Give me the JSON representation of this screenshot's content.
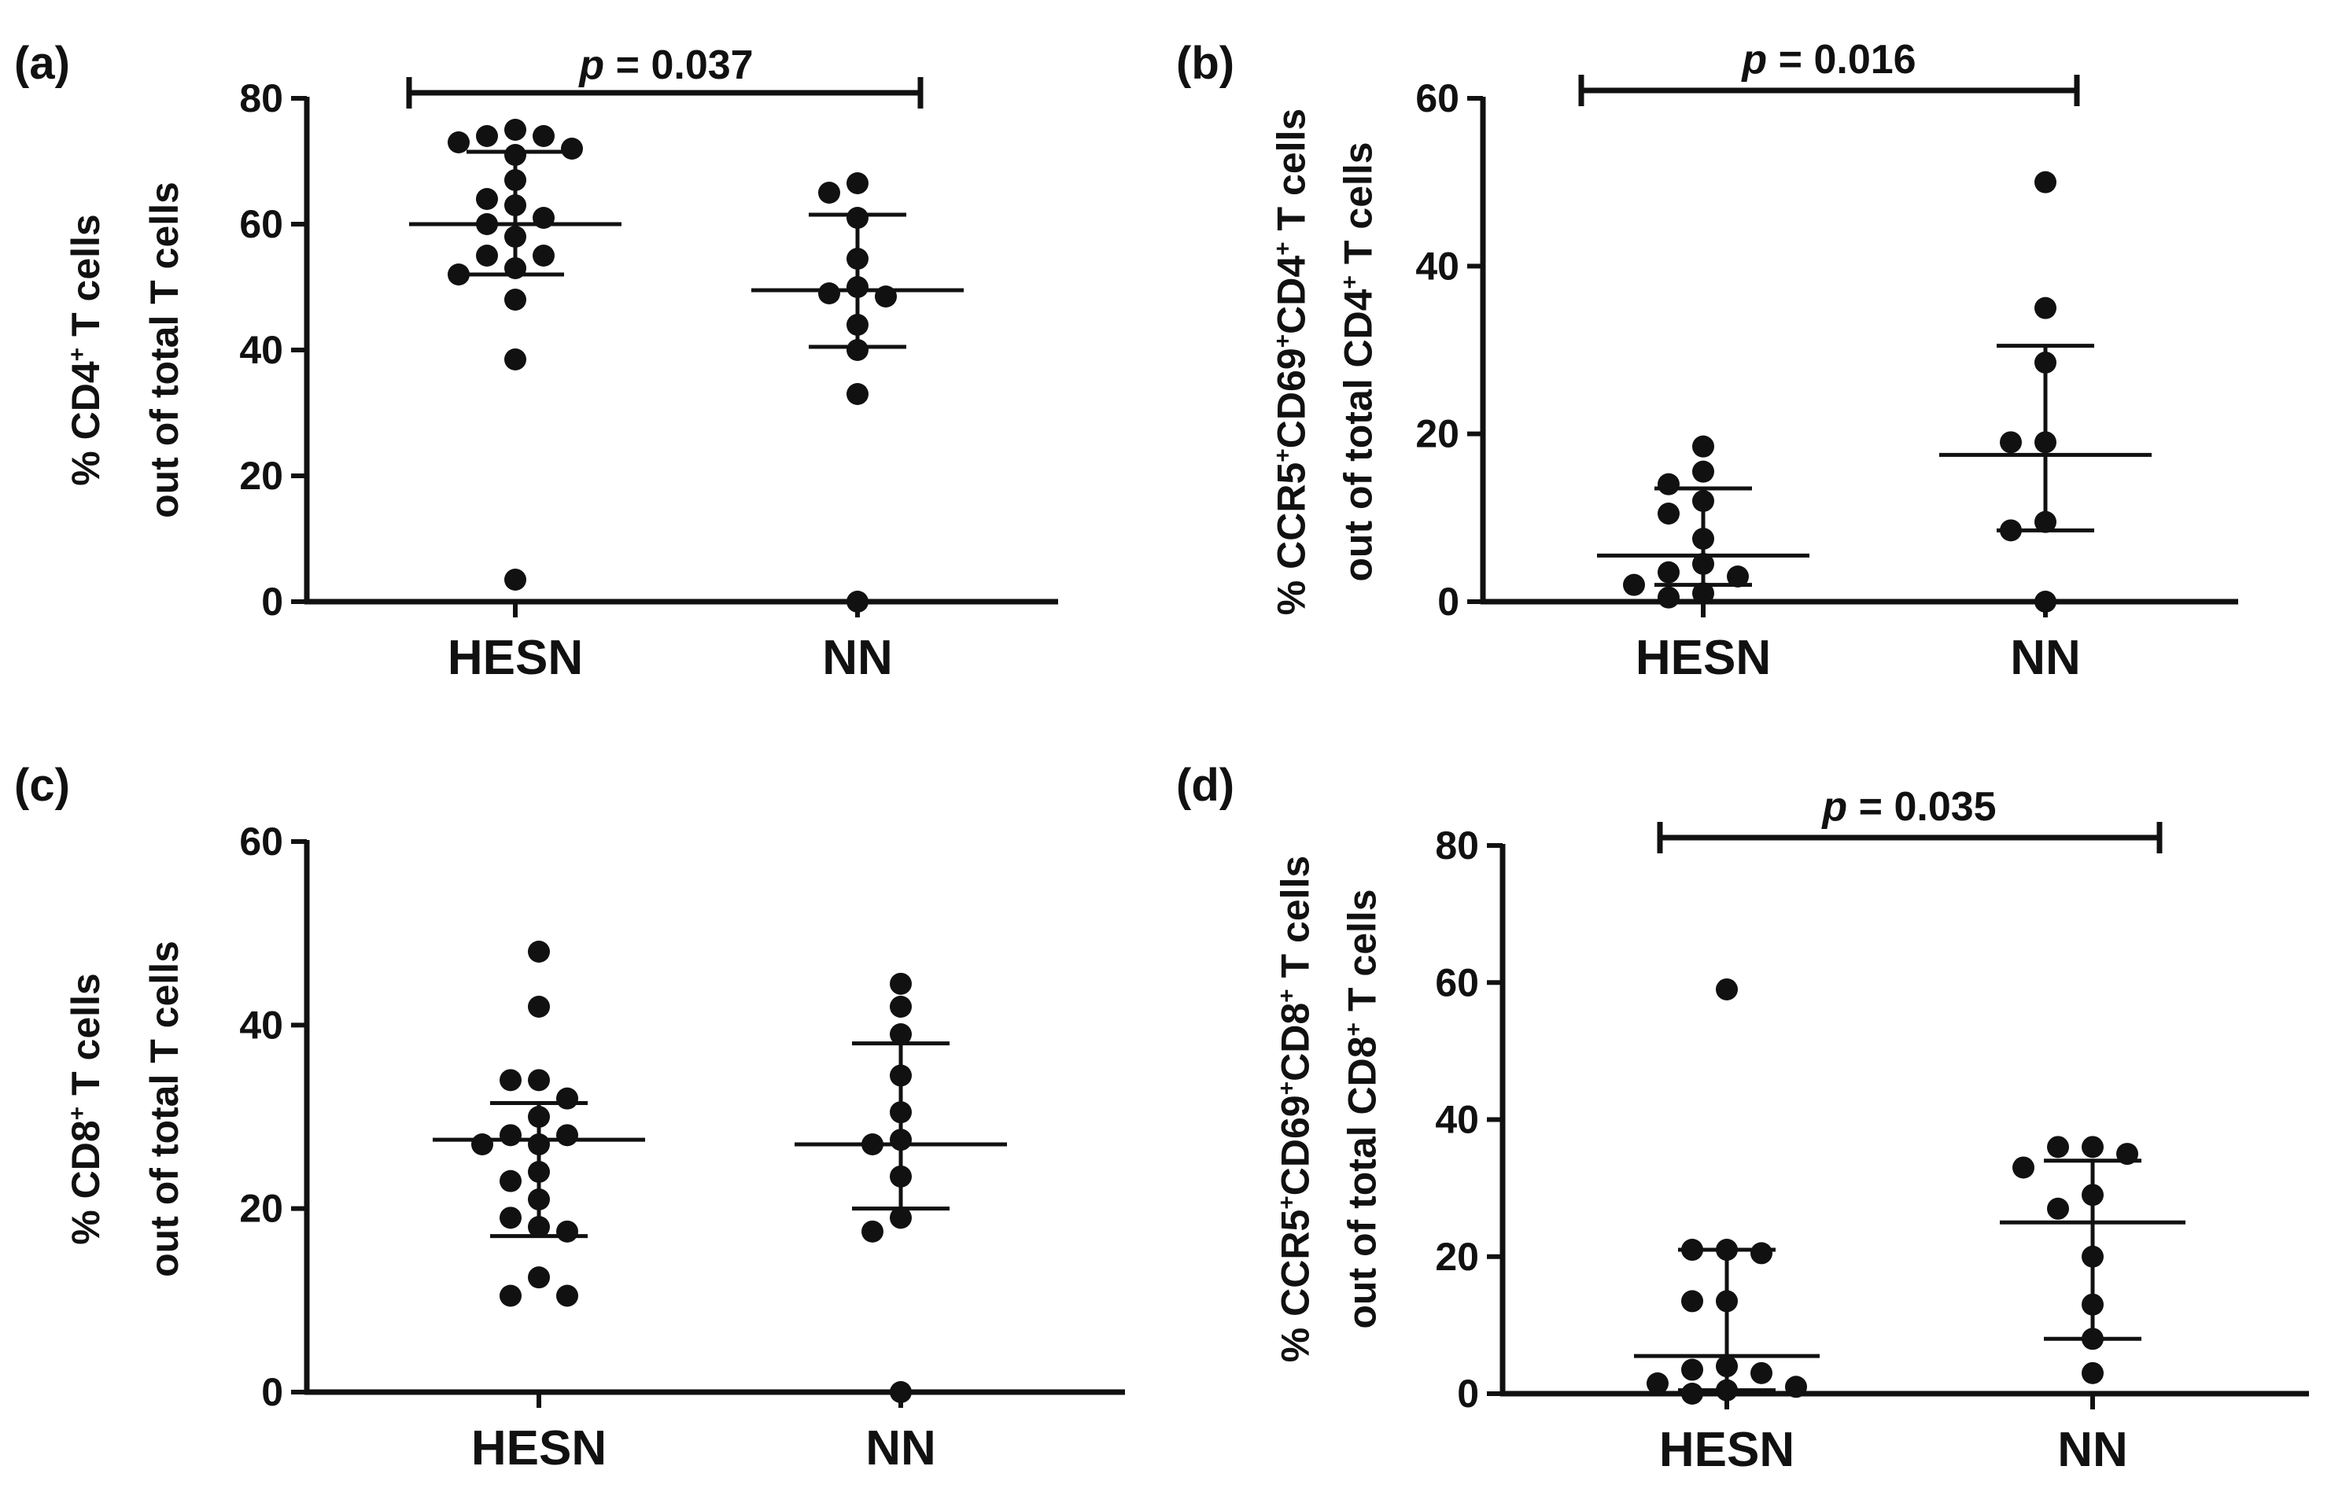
{
  "chart_data": [
    {
      "type": "scatter",
      "panel_label": "(a)",
      "ylabel_parts": [
        {
          "line": 1,
          "text": "% CD4",
          "sup": false
        },
        {
          "line": 1,
          "text": "+",
          "sup": true
        },
        {
          "line": 1,
          "text": " T cells",
          "sup": false
        },
        {
          "line": 2,
          "text": "out of total T cells",
          "sup": false
        }
      ],
      "ylim": [
        0,
        80
      ],
      "yticks": [
        0,
        20,
        40,
        60,
        80
      ],
      "categories": [
        "HESN",
        "NN"
      ],
      "significance": {
        "p_label": "p",
        "p_value": " = 0.037"
      },
      "series": [
        {
          "name": "HESN",
          "mean": 60,
          "error_low": 52,
          "error_high": 71.5,
          "values": [
            75,
            74,
            74,
            73,
            72,
            71,
            67,
            64,
            63,
            61,
            60,
            58,
            55,
            55,
            53,
            52,
            48,
            38.5,
            3.5
          ]
        },
        {
          "name": "NN",
          "mean": 49.5,
          "error_low": 40.5,
          "error_high": 61.5,
          "values": [
            66.5,
            65,
            61,
            54.5,
            50,
            49,
            48.5,
            44,
            40,
            33,
            0
          ]
        }
      ]
    },
    {
      "type": "scatter",
      "panel_label": "(b)",
      "ylabel_parts": [
        {
          "line": 1,
          "text": "% CCR5",
          "sup": false
        },
        {
          "line": 1,
          "text": "+",
          "sup": true
        },
        {
          "line": 1,
          "text": "CD69",
          "sup": false
        },
        {
          "line": 1,
          "text": "+",
          "sup": true
        },
        {
          "line": 1,
          "text": "CD4",
          "sup": false
        },
        {
          "line": 1,
          "text": "+",
          "sup": true
        },
        {
          "line": 1,
          "text": " T cells",
          "sup": false
        },
        {
          "line": 2,
          "text": "out of total CD4",
          "sup": false
        },
        {
          "line": 2,
          "text": "+",
          "sup": true
        },
        {
          "line": 2,
          "text": " T cells",
          "sup": false
        }
      ],
      "ylim": [
        0,
        60
      ],
      "yticks": [
        0,
        20,
        40,
        60
      ],
      "categories": [
        "HESN",
        "NN"
      ],
      "significance": {
        "p_label": "p",
        "p_value": " = 0.016"
      },
      "series": [
        {
          "name": "HESN",
          "mean": 5.5,
          "error_low": 2,
          "error_high": 13.5,
          "values": [
            18.5,
            15.5,
            14,
            12,
            10.5,
            7.5,
            4.5,
            3.5,
            3,
            2,
            1,
            0.5
          ]
        },
        {
          "name": "NN",
          "mean": 17.5,
          "error_low": 8.5,
          "error_high": 30.5,
          "values": [
            50,
            35,
            28.5,
            19,
            19,
            9.5,
            8.5,
            0
          ]
        }
      ]
    },
    {
      "type": "scatter",
      "panel_label": "(c)",
      "ylabel_parts": [
        {
          "line": 1,
          "text": "% CD8",
          "sup": false
        },
        {
          "line": 1,
          "text": "+",
          "sup": true
        },
        {
          "line": 1,
          "text": " T cells",
          "sup": false
        },
        {
          "line": 2,
          "text": "out of total T cells",
          "sup": false
        }
      ],
      "ylim": [
        0,
        60
      ],
      "yticks": [
        0,
        20,
        40,
        60
      ],
      "categories": [
        "HESN",
        "NN"
      ],
      "series": [
        {
          "name": "HESN",
          "mean": 27.5,
          "error_low": 17,
          "error_high": 31.5,
          "values": [
            48,
            42,
            34,
            34,
            32,
            30,
            28,
            28,
            27,
            27,
            24,
            23,
            21,
            19,
            18,
            17.5,
            12.5,
            10.5,
            10.5
          ]
        },
        {
          "name": "NN",
          "mean": 27,
          "error_low": 20,
          "error_high": 38,
          "values": [
            44.5,
            42,
            39,
            34.5,
            30.5,
            27.5,
            27,
            23.5,
            19,
            17.5,
            0
          ]
        }
      ]
    },
    {
      "type": "scatter",
      "panel_label": "(d)",
      "ylabel_parts": [
        {
          "line": 1,
          "text": "% CCR5",
          "sup": false
        },
        {
          "line": 1,
          "text": "+",
          "sup": true
        },
        {
          "line": 1,
          "text": "CD69",
          "sup": false
        },
        {
          "line": 1,
          "text": "+",
          "sup": true
        },
        {
          "line": 1,
          "text": "CD8",
          "sup": false
        },
        {
          "line": 1,
          "text": "+",
          "sup": true
        },
        {
          "line": 1,
          "text": " T cells",
          "sup": false
        },
        {
          "line": 2,
          "text": "out of total CD8",
          "sup": false
        },
        {
          "line": 2,
          "text": "+",
          "sup": true
        },
        {
          "line": 2,
          "text": " T cells",
          "sup": false
        }
      ],
      "ylim": [
        0,
        80
      ],
      "yticks": [
        0,
        20,
        40,
        60,
        80
      ],
      "categories": [
        "HESN",
        "NN"
      ],
      "significance": {
        "p_label": "p",
        "p_value": " = 0.035"
      },
      "series": [
        {
          "name": "HESN",
          "mean": 5.5,
          "error_low": 0.5,
          "error_high": 21,
          "values": [
            59,
            21,
            21,
            20.5,
            13.5,
            13.5,
            4,
            3.5,
            3,
            1.5,
            1,
            0.5,
            0
          ]
        },
        {
          "name": "NN",
          "mean": 25,
          "error_low": 8,
          "error_high": 34,
          "values": [
            36,
            36,
            35,
            33,
            29,
            27,
            20,
            13,
            8,
            3
          ]
        }
      ]
    }
  ]
}
